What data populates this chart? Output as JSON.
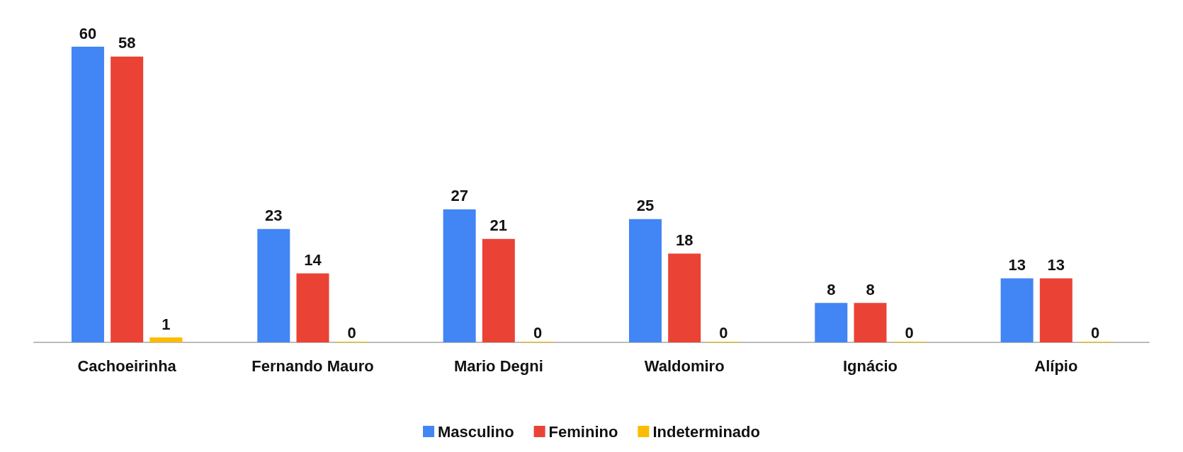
{
  "chart_data": {
    "type": "bar",
    "categories": [
      "Cachoeirinha",
      "Fernando Mauro",
      "Mario Degni",
      "Waldomiro",
      "Ignácio",
      "Alípio"
    ],
    "series": [
      {
        "name": "Masculino",
        "color": "#4285f4",
        "values": [
          60,
          23,
          27,
          25,
          8,
          13
        ]
      },
      {
        "name": "Feminino",
        "color": "#ea4335",
        "values": [
          58,
          14,
          21,
          18,
          8,
          13
        ]
      },
      {
        "name": "Indeterminado",
        "color": "#fbbc04",
        "values": [
          1,
          0,
          0,
          0,
          0,
          0
        ]
      }
    ],
    "data_labels": true,
    "legend": "bottom"
  }
}
